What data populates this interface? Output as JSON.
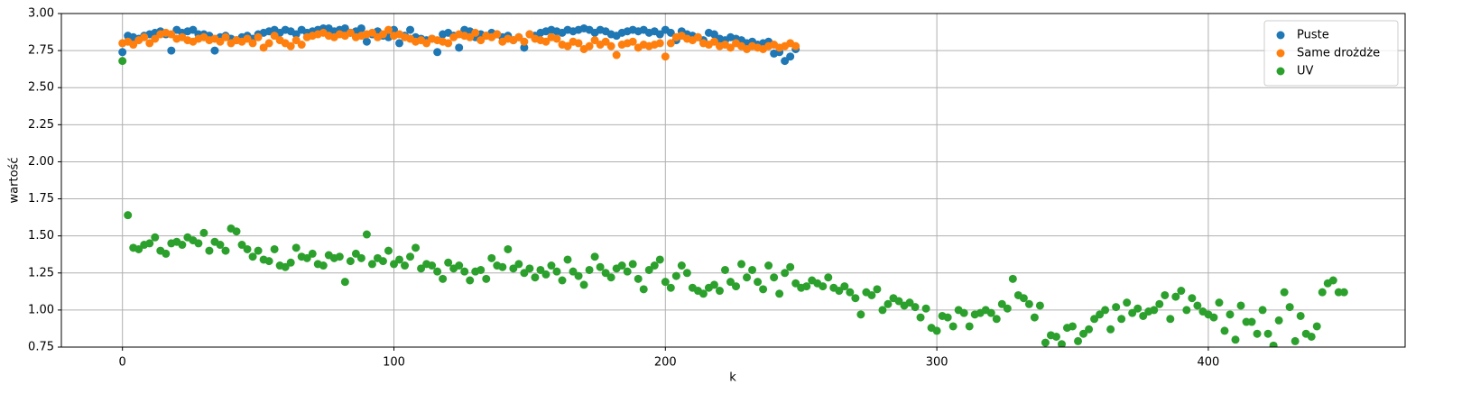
{
  "chart_data": {
    "type": "scatter",
    "x_label": "k",
    "y_label": "wartość",
    "xlim": [
      -22.5,
      472.5
    ],
    "ylim": [
      0.75,
      3.0
    ],
    "xticks": [
      0,
      100,
      200,
      300,
      400
    ],
    "yticks": [
      0.75,
      {
        "value": 1,
        "label": "1.00"
      },
      1.25,
      {
        "value": 1.5,
        "label": "1.50"
      },
      1.75,
      {
        "value": 2,
        "label": "2.00"
      },
      2.25,
      {
        "value": 2.5,
        "label": "2.50"
      },
      2.75,
      {
        "value": 3,
        "label": "3.00"
      }
    ],
    "grid": true,
    "legend": "upper right",
    "series": [
      {
        "name": "Puste",
        "color": "#1f77b4",
        "x": [
          0,
          2,
          4,
          6,
          8,
          10,
          12,
          14,
          16,
          18,
          20,
          22,
          24,
          26,
          28,
          30,
          32,
          34,
          36,
          38,
          40,
          42,
          44,
          46,
          48,
          50,
          52,
          54,
          56,
          58,
          60,
          62,
          64,
          66,
          68,
          70,
          72,
          74,
          76,
          78,
          80,
          82,
          84,
          86,
          88,
          90,
          92,
          94,
          96,
          98,
          100,
          102,
          104,
          106,
          108,
          110,
          112,
          114,
          116,
          118,
          120,
          122,
          124,
          126,
          128,
          130,
          132,
          134,
          136,
          138,
          140,
          142,
          144,
          146,
          148,
          150,
          152,
          154,
          156,
          158,
          160,
          162,
          164,
          166,
          168,
          170,
          172,
          174,
          176,
          178,
          180,
          182,
          184,
          186,
          188,
          190,
          192,
          194,
          196,
          198,
          200,
          202,
          204,
          206,
          208,
          210,
          212,
          214,
          216,
          218,
          220,
          222,
          224,
          226,
          228,
          230,
          232,
          234,
          236,
          238,
          240,
          242,
          244,
          246,
          248
        ],
        "values": [
          2.74,
          2.85,
          2.84,
          2.83,
          2.85,
          2.86,
          2.87,
          2.88,
          2.86,
          2.75,
          2.89,
          2.87,
          2.88,
          2.89,
          2.86,
          2.86,
          2.85,
          2.75,
          2.84,
          2.85,
          2.83,
          2.82,
          2.84,
          2.85,
          2.83,
          2.86,
          2.87,
          2.88,
          2.89,
          2.87,
          2.89,
          2.88,
          2.86,
          2.89,
          2.87,
          2.88,
          2.89,
          2.9,
          2.9,
          2.88,
          2.89,
          2.9,
          2.87,
          2.88,
          2.9,
          2.81,
          2.86,
          2.88,
          2.85,
          2.84,
          2.89,
          2.8,
          2.85,
          2.89,
          2.84,
          2.83,
          2.82,
          2.83,
          2.74,
          2.86,
          2.87,
          2.85,
          2.77,
          2.89,
          2.88,
          2.84,
          2.86,
          2.85,
          2.87,
          2.86,
          2.84,
          2.85,
          2.82,
          2.84,
          2.77,
          2.86,
          2.85,
          2.87,
          2.88,
          2.89,
          2.88,
          2.87,
          2.89,
          2.88,
          2.89,
          2.9,
          2.89,
          2.87,
          2.89,
          2.88,
          2.86,
          2.85,
          2.87,
          2.88,
          2.89,
          2.88,
          2.89,
          2.87,
          2.88,
          2.86,
          2.89,
          2.87,
          2.82,
          2.88,
          2.86,
          2.85,
          2.84,
          2.82,
          2.87,
          2.86,
          2.83,
          2.82,
          2.84,
          2.83,
          2.82,
          2.8,
          2.81,
          2.79,
          2.8,
          2.81,
          2.73,
          2.74,
          2.68,
          2.71,
          2.76
        ]
      },
      {
        "name": "Same drożdże",
        "color": "#ff7f0e",
        "x": [
          0,
          2,
          4,
          6,
          8,
          10,
          12,
          14,
          16,
          18,
          20,
          22,
          24,
          26,
          28,
          30,
          32,
          34,
          36,
          38,
          40,
          42,
          44,
          46,
          48,
          50,
          52,
          54,
          56,
          58,
          60,
          62,
          64,
          66,
          68,
          70,
          72,
          74,
          76,
          78,
          80,
          82,
          84,
          86,
          88,
          90,
          92,
          94,
          96,
          98,
          100,
          102,
          104,
          106,
          108,
          110,
          112,
          114,
          116,
          118,
          120,
          122,
          124,
          126,
          128,
          130,
          132,
          134,
          136,
          138,
          140,
          142,
          144,
          146,
          148,
          150,
          152,
          154,
          156,
          158,
          160,
          162,
          164,
          166,
          168,
          170,
          172,
          174,
          176,
          178,
          180,
          182,
          184,
          186,
          188,
          190,
          192,
          194,
          196,
          198,
          200,
          202,
          204,
          206,
          208,
          210,
          212,
          214,
          216,
          218,
          220,
          222,
          224,
          226,
          228,
          230,
          232,
          234,
          236,
          238,
          240,
          242,
          244,
          246,
          248
        ],
        "values": [
          2.8,
          2.81,
          2.79,
          2.82,
          2.84,
          2.8,
          2.83,
          2.86,
          2.87,
          2.86,
          2.83,
          2.84,
          2.82,
          2.81,
          2.83,
          2.84,
          2.82,
          2.83,
          2.81,
          2.84,
          2.8,
          2.82,
          2.81,
          2.83,
          2.8,
          2.84,
          2.77,
          2.8,
          2.85,
          2.82,
          2.8,
          2.78,
          2.82,
          2.79,
          2.84,
          2.85,
          2.86,
          2.87,
          2.85,
          2.84,
          2.86,
          2.85,
          2.87,
          2.84,
          2.85,
          2.86,
          2.87,
          2.84,
          2.86,
          2.89,
          2.85,
          2.86,
          2.84,
          2.83,
          2.81,
          2.82,
          2.8,
          2.83,
          2.82,
          2.81,
          2.8,
          2.84,
          2.86,
          2.85,
          2.84,
          2.87,
          2.82,
          2.85,
          2.84,
          2.86,
          2.81,
          2.83,
          2.82,
          2.84,
          2.81,
          2.86,
          2.83,
          2.82,
          2.81,
          2.84,
          2.83,
          2.79,
          2.78,
          2.81,
          2.8,
          2.76,
          2.78,
          2.82,
          2.79,
          2.81,
          2.78,
          2.72,
          2.79,
          2.8,
          2.81,
          2.77,
          2.79,
          2.78,
          2.79,
          2.8,
          2.71,
          2.8,
          2.84,
          2.85,
          2.83,
          2.82,
          2.84,
          2.8,
          2.79,
          2.81,
          2.78,
          2.79,
          2.77,
          2.8,
          2.78,
          2.76,
          2.78,
          2.77,
          2.76,
          2.78,
          2.79,
          2.77,
          2.78,
          2.8,
          2.78
        ]
      },
      {
        "name": "UV",
        "color": "#2ca02c",
        "x": [
          0,
          2,
          4,
          6,
          8,
          10,
          12,
          14,
          16,
          18,
          20,
          22,
          24,
          26,
          28,
          30,
          32,
          34,
          36,
          38,
          40,
          42,
          44,
          46,
          48,
          50,
          52,
          54,
          56,
          58,
          60,
          62,
          64,
          66,
          68,
          70,
          72,
          74,
          76,
          78,
          80,
          82,
          84,
          86,
          88,
          90,
          92,
          94,
          96,
          98,
          100,
          102,
          104,
          106,
          108,
          110,
          112,
          114,
          116,
          118,
          120,
          122,
          124,
          126,
          128,
          130,
          132,
          134,
          136,
          138,
          140,
          142,
          144,
          146,
          148,
          150,
          152,
          154,
          156,
          158,
          160,
          162,
          164,
          166,
          168,
          170,
          172,
          174,
          176,
          178,
          180,
          182,
          184,
          186,
          188,
          190,
          192,
          194,
          196,
          198,
          200,
          202,
          204,
          206,
          208,
          210,
          212,
          214,
          216,
          218,
          220,
          222,
          224,
          226,
          228,
          230,
          232,
          234,
          236,
          238,
          240,
          242,
          244,
          246,
          248,
          250,
          252,
          254,
          256,
          258,
          260,
          262,
          264,
          266,
          268,
          270,
          272,
          274,
          276,
          278,
          280,
          282,
          284,
          286,
          288,
          290,
          292,
          294,
          296,
          298,
          300,
          302,
          304,
          306,
          308,
          310,
          312,
          314,
          316,
          318,
          320,
          322,
          324,
          326,
          328,
          330,
          332,
          334,
          336,
          338,
          340,
          342,
          344,
          346,
          348,
          350,
          352,
          354,
          356,
          358,
          360,
          362,
          364,
          366,
          368,
          370,
          372,
          374,
          376,
          378,
          380,
          382,
          384,
          386,
          388,
          390,
          392,
          394,
          396,
          398,
          400,
          402,
          404,
          406,
          408,
          410,
          412,
          414,
          416,
          418,
          420,
          422,
          424,
          426,
          428,
          430,
          432,
          434,
          436,
          438,
          440,
          442,
          444,
          446,
          448,
          450
        ],
        "values": [
          2.68,
          1.64,
          1.42,
          1.41,
          1.44,
          1.45,
          1.49,
          1.4,
          1.38,
          1.45,
          1.46,
          1.44,
          1.49,
          1.47,
          1.45,
          1.52,
          1.4,
          1.46,
          1.44,
          1.4,
          1.55,
          1.53,
          1.44,
          1.41,
          1.36,
          1.4,
          1.34,
          1.33,
          1.41,
          1.3,
          1.29,
          1.32,
          1.42,
          1.36,
          1.35,
          1.38,
          1.31,
          1.3,
          1.37,
          1.35,
          1.36,
          1.19,
          1.33,
          1.38,
          1.35,
          1.51,
          1.31,
          1.35,
          1.33,
          1.4,
          1.31,
          1.34,
          1.3,
          1.36,
          1.42,
          1.28,
          1.31,
          1.3,
          1.26,
          1.21,
          1.32,
          1.28,
          1.3,
          1.26,
          1.2,
          1.26,
          1.27,
          1.21,
          1.35,
          1.3,
          1.29,
          1.41,
          1.28,
          1.31,
          1.25,
          1.28,
          1.22,
          1.27,
          1.24,
          1.3,
          1.26,
          1.2,
          1.34,
          1.26,
          1.23,
          1.17,
          1.27,
          1.36,
          1.29,
          1.25,
          1.22,
          1.28,
          1.3,
          1.26,
          1.31,
          1.21,
          1.14,
          1.27,
          1.3,
          1.34,
          1.19,
          1.15,
          1.23,
          1.3,
          1.25,
          1.15,
          1.13,
          1.11,
          1.15,
          1.17,
          1.13,
          1.27,
          1.19,
          1.16,
          1.31,
          1.22,
          1.27,
          1.19,
          1.14,
          1.3,
          1.22,
          1.11,
          1.25,
          1.29,
          1.18,
          1.15,
          1.16,
          1.2,
          1.18,
          1.16,
          1.22,
          1.15,
          1.13,
          1.16,
          1.12,
          1.08,
          0.97,
          1.12,
          1.1,
          1.14,
          1.0,
          1.04,
          1.08,
          1.06,
          1.03,
          1.05,
          1.02,
          0.95,
          1.01,
          0.88,
          0.86,
          0.96,
          0.95,
          0.89,
          1.0,
          0.98,
          0.89,
          0.97,
          0.98,
          1.0,
          0.98,
          0.94,
          1.04,
          1.01,
          1.21,
          1.1,
          1.08,
          1.04,
          0.95,
          1.03,
          0.78,
          0.83,
          0.82,
          0.77,
          0.88,
          0.89,
          0.79,
          0.84,
          0.87,
          0.94,
          0.97,
          1.0,
          0.87,
          1.02,
          0.94,
          1.05,
          0.98,
          1.01,
          0.96,
          0.99,
          1.0,
          1.04,
          1.1,
          0.94,
          1.09,
          1.13,
          1.0,
          1.08,
          1.03,
          0.99,
          0.97,
          0.95,
          1.05,
          0.86,
          0.97,
          0.8,
          1.03,
          0.92,
          0.92,
          0.84,
          1.0,
          0.84,
          0.76,
          0.93,
          1.12,
          1.02,
          0.79,
          0.96,
          0.84,
          0.82,
          0.89,
          1.12,
          1.18,
          1.2,
          1.12,
          1.12
        ]
      }
    ]
  }
}
